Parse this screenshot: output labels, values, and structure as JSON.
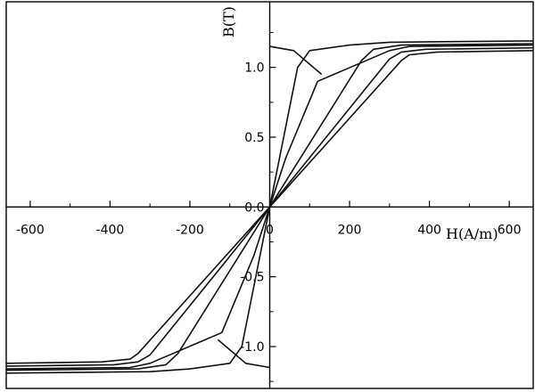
{
  "chart_data": {
    "type": "line",
    "title": "",
    "xlabel": "H(A/m)",
    "ylabel": "B(T)",
    "xlim": [
      -660,
      660
    ],
    "ylim": [
      -1.3,
      1.47
    ],
    "grid": false,
    "legend": "none",
    "x_ticks": [
      -600,
      -400,
      -200,
      0,
      200,
      400,
      600
    ],
    "x_tick_labels": [
      "-600",
      "-400",
      "-200",
      "0",
      "200",
      "400",
      "600"
    ],
    "y_ticks": [
      -1.0,
      -0.5,
      0.0,
      0.5,
      1.0
    ],
    "y_tick_labels": [
      "-1.0",
      "-0.5",
      "0.0",
      "0.5",
      "1.0"
    ],
    "series": [
      {
        "points": [
          [
            -660,
            -1.19
          ],
          [
            -300,
            -1.18
          ],
          [
            -200,
            -1.16
          ],
          [
            -100,
            -1.12
          ],
          [
            -70,
            -1.0
          ],
          [
            0,
            0.0
          ],
          [
            70,
            1.0
          ],
          [
            100,
            1.12
          ],
          [
            200,
            1.16
          ],
          [
            300,
            1.18
          ],
          [
            660,
            1.19
          ]
        ]
      },
      {
        "points": [
          [
            -660,
            -1.17
          ],
          [
            -330,
            -1.16
          ],
          [
            -260,
            -1.13
          ],
          [
            -230,
            -1.05
          ],
          [
            0,
            0.0
          ],
          [
            230,
            1.05
          ],
          [
            260,
            1.13
          ],
          [
            330,
            1.16
          ],
          [
            660,
            1.17
          ]
        ]
      },
      {
        "points": [
          [
            -660,
            -1.14
          ],
          [
            -390,
            -1.13
          ],
          [
            -330,
            -1.11
          ],
          [
            -300,
            -1.06
          ],
          [
            0,
            0.0
          ],
          [
            300,
            1.06
          ],
          [
            330,
            1.11
          ],
          [
            390,
            1.13
          ],
          [
            660,
            1.14
          ]
        ]
      },
      {
        "points": [
          [
            -660,
            -1.12
          ],
          [
            -420,
            -1.11
          ],
          [
            -350,
            -1.09
          ],
          [
            -330,
            -1.05
          ],
          [
            0,
            0.0
          ],
          [
            330,
            1.05
          ],
          [
            350,
            1.09
          ],
          [
            420,
            1.11
          ],
          [
            660,
            1.12
          ]
        ]
      },
      {
        "points": [
          [
            -660,
            -1.16
          ],
          [
            -350,
            -1.15
          ],
          [
            -300,
            -1.12
          ],
          [
            -120,
            -0.9
          ],
          [
            -40,
            -0.35
          ],
          [
            0,
            0.0
          ],
          [
            40,
            0.35
          ],
          [
            120,
            0.9
          ],
          [
            300,
            1.12
          ],
          [
            350,
            1.15
          ],
          [
            660,
            1.16
          ]
        ]
      },
      {
        "points": [
          [
            -130,
            -0.95
          ],
          [
            -60,
            -1.12
          ],
          [
            0,
            -1.15
          ]
        ]
      },
      {
        "points": [
          [
            130,
            0.95
          ],
          [
            60,
            1.12
          ],
          [
            0,
            1.15
          ]
        ]
      }
    ]
  }
}
